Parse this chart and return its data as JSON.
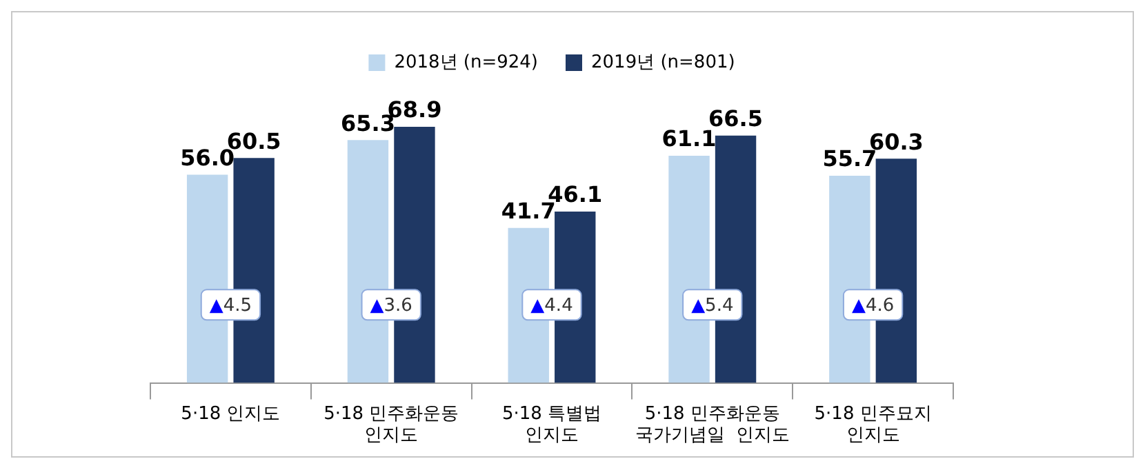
{
  "chart_data": {
    "type": "bar",
    "categories": [
      "5·18 인지도",
      "5·18 민주화운동\n인지도",
      "5·18 특별법\n인지도",
      "5·18 민주화운동\n국가기념일  인지도",
      "5·18 민주묘지\n인지도"
    ],
    "series": [
      {
        "name": "2018년 (n=924)",
        "color": "#bdd7ee",
        "values": [
          56.0,
          65.3,
          41.7,
          61.1,
          55.7
        ],
        "value_labels": [
          "56.0",
          "65.3",
          "41.7",
          "61.1",
          "55.7"
        ]
      },
      {
        "name": "2019년 (n=801)",
        "color": "#1f3864",
        "values": [
          60.5,
          68.9,
          46.1,
          66.5,
          60.3
        ],
        "value_labels": [
          "60.5",
          "68.9",
          "46.1",
          "66.5",
          "60.3"
        ]
      }
    ],
    "tick_labels": "x",
    "legend": "top",
    "grid": false,
    "annotations": [
      {
        "text": "▲4.5",
        "x": "5·18 인지도",
        "y": 21
      },
      {
        "text": "▲3.6",
        "x": "5·18 민주화운동\n인지도",
        "y": 21
      },
      {
        "text": "▲4.4",
        "x": "5·18 특별법\n인지도",
        "y": 21
      },
      {
        "text": "▲5.4",
        "x": "5·18 민주화운동\n국가기념일  인지도",
        "y": 21
      },
      {
        "text": "▲4.6",
        "x": "5·18 민주묘지\n인지도",
        "y": 21
      }
    ]
  }
}
